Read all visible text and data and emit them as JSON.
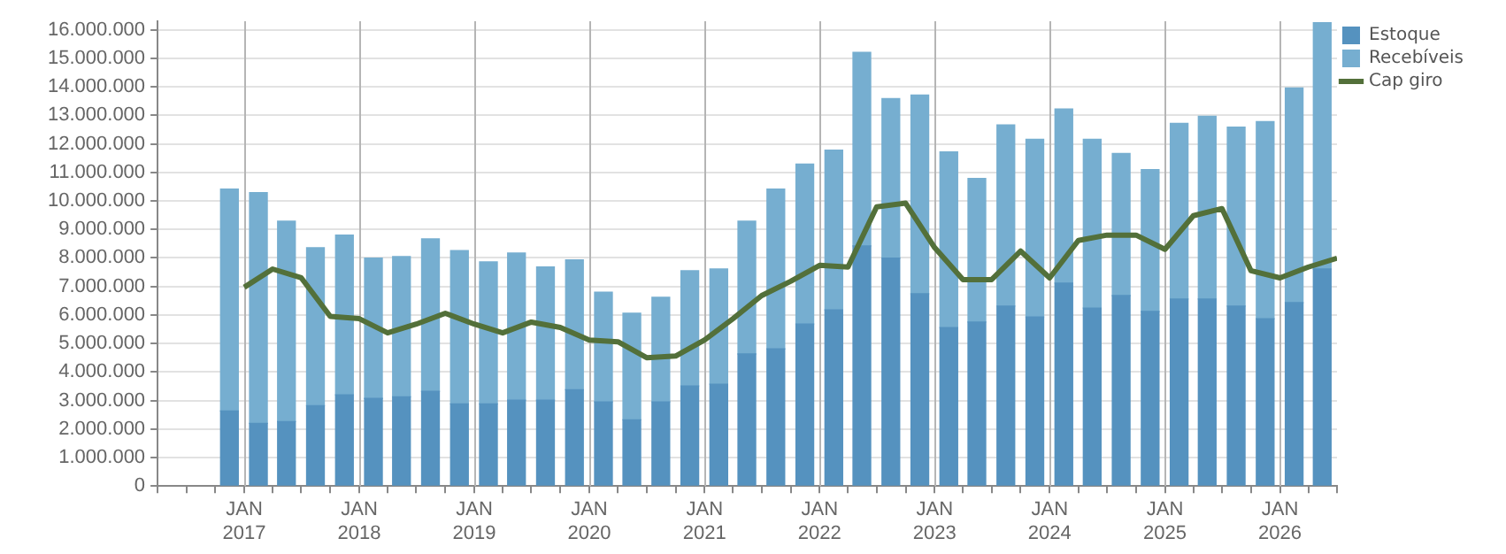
{
  "chart_data": {
    "type": "bar",
    "stacked": true,
    "grid": true,
    "legend": "top right",
    "xlim": [
      "2016-04-01",
      "2026-07-01"
    ],
    "xticks": [
      {
        "value": "2016-04-01",
        "label": null
      },
      {
        "value": "2016-07-01",
        "label": null
      },
      {
        "value": "2016-10-01",
        "label": null
      },
      {
        "value": "2017-01-01",
        "label": "JAN 2017"
      },
      {
        "value": "2017-04-01",
        "label": null
      },
      {
        "value": "2017-07-01",
        "label": null
      },
      {
        "value": "2017-10-01",
        "label": null
      },
      {
        "value": "2018-01-01",
        "label": "JAN 2018"
      },
      {
        "value": "2018-04-01",
        "label": null
      },
      {
        "value": "2018-07-01",
        "label": null
      },
      {
        "value": "2018-10-01",
        "label": null
      },
      {
        "value": "2019-01-01",
        "label": "JAN 2019"
      },
      {
        "value": "2019-04-01",
        "label": null
      },
      {
        "value": "2019-07-01",
        "label": null
      },
      {
        "value": "2019-10-01",
        "label": null
      },
      {
        "value": "2020-01-01",
        "label": "JAN 2020"
      },
      {
        "value": "2020-04-01",
        "label": null
      },
      {
        "value": "2020-07-01",
        "label": null
      },
      {
        "value": "2020-10-01",
        "label": null
      },
      {
        "value": "2021-01-01",
        "label": "JAN 2021"
      },
      {
        "value": "2021-04-01",
        "label": null
      },
      {
        "value": "2021-07-01",
        "label": null
      },
      {
        "value": "2021-10-01",
        "label": null
      },
      {
        "value": "2022-01-01",
        "label": "JAN 2022"
      },
      {
        "value": "2022-04-01",
        "label": null
      },
      {
        "value": "2022-07-01",
        "label": null
      },
      {
        "value": "2022-10-01",
        "label": null
      },
      {
        "value": "2023-01-01",
        "label": "JAN 2023"
      },
      {
        "value": "2023-04-01",
        "label": null
      },
      {
        "value": "2023-07-01",
        "label": null
      },
      {
        "value": "2023-10-01",
        "label": null
      },
      {
        "value": "2024-01-01",
        "label": "JAN 2024"
      },
      {
        "value": "2024-04-01",
        "label": null
      },
      {
        "value": "2024-07-01",
        "label": null
      },
      {
        "value": "2024-10-01",
        "label": null
      },
      {
        "value": "2025-01-01",
        "label": "JAN 2025"
      },
      {
        "value": "2025-04-01",
        "label": null
      },
      {
        "value": "2025-07-01",
        "label": null
      },
      {
        "value": "2025-10-01",
        "label": null
      },
      {
        "value": "2026-01-01",
        "label": "JAN 2026"
      },
      {
        "value": "2026-04-01",
        "label": null
      },
      {
        "value": "2026-07-01",
        "label": null
      }
    ],
    "ylim": [
      0,
      16300000
    ],
    "yticks": [
      {
        "value": 0,
        "label": "0"
      },
      {
        "value": 1000000,
        "label": "1.000.000"
      },
      {
        "value": 2000000,
        "label": "2.000.000"
      },
      {
        "value": 3000000,
        "label": "3.000.000"
      },
      {
        "value": 4000000,
        "label": "4.000.000"
      },
      {
        "value": 5000000,
        "label": "5.000.000"
      },
      {
        "value": 6000000,
        "label": "6.000.000"
      },
      {
        "value": 7000000,
        "label": "7.000.000"
      },
      {
        "value": 8000000,
        "label": "8.000.000"
      },
      {
        "value": 9000000,
        "label": "9.000.000"
      },
      {
        "value": 10000000,
        "label": "10.000.000"
      },
      {
        "value": 11000000,
        "label": "11.000.000"
      },
      {
        "value": 12000000,
        "label": "12.000.000"
      },
      {
        "value": 13000000,
        "label": "13.000.000"
      },
      {
        "value": 14000000,
        "label": "14.000.000"
      },
      {
        "value": 15000000,
        "label": "15.000.000"
      },
      {
        "value": 16000000,
        "label": "16.000.000"
      }
    ],
    "x": [
      "2016-11-15",
      "2017-02-15",
      "2017-05-15",
      "2017-08-15",
      "2017-11-15",
      "2018-02-15",
      "2018-05-15",
      "2018-08-15",
      "2018-11-15",
      "2019-02-15",
      "2019-05-15",
      "2019-08-15",
      "2019-11-15",
      "2020-02-15",
      "2020-05-15",
      "2020-08-15",
      "2020-11-15",
      "2021-02-15",
      "2021-05-15",
      "2021-08-15",
      "2021-11-15",
      "2022-02-15",
      "2022-05-15",
      "2022-08-15",
      "2022-11-15",
      "2023-02-15",
      "2023-05-15",
      "2023-08-15",
      "2023-11-15",
      "2024-02-15",
      "2024-05-15",
      "2024-08-15",
      "2024-11-15",
      "2025-02-15",
      "2025-05-15",
      "2025-08-15",
      "2025-11-15",
      "2026-02-15",
      "2026-05-15"
    ],
    "series": [
      {
        "name": "Estoque",
        "color": "#5592bf",
        "values": [
          2630000,
          2200000,
          2260000,
          2820000,
          3200000,
          3070000,
          3130000,
          3320000,
          2880000,
          2880000,
          3010000,
          3010000,
          3380000,
          2950000,
          2320000,
          2950000,
          3510000,
          3570000,
          4630000,
          4810000,
          5680000,
          6180000,
          8420000,
          7990000,
          6740000,
          5560000,
          5750000,
          6310000,
          5930000,
          7120000,
          6240000,
          6680000,
          6120000,
          6560000,
          6560000,
          6310000,
          5870000,
          6430000,
          7610000
        ]
      },
      {
        "name": "Recebíveis",
        "color": "#76aed0",
        "values": [
          7780000,
          8090000,
          7030000,
          5540000,
          5600000,
          4920000,
          4920000,
          5350000,
          5380000,
          4980000,
          5160000,
          4670000,
          4550000,
          3850000,
          3740000,
          3670000,
          4040000,
          4040000,
          4660000,
          5600000,
          5610000,
          5600000,
          6790000,
          5600000,
          6970000,
          6160000,
          5040000,
          6350000,
          6230000,
          6100000,
          5920000,
          4980000,
          4980000,
          6160000,
          6410000,
          6280000,
          6910000,
          7530000,
          8640000
        ]
      },
      {
        "name": "Cap giro",
        "type": "line",
        "color": "#53703a",
        "x": [
          "2017-01-01",
          "2017-04-01",
          "2017-07-01",
          "2017-10-01",
          "2018-01-01",
          "2018-04-01",
          "2018-07-01",
          "2018-10-01",
          "2019-01-01",
          "2019-04-01",
          "2019-07-01",
          "2019-10-01",
          "2020-01-01",
          "2020-04-01",
          "2020-07-01",
          "2020-10-01",
          "2021-01-01",
          "2021-04-01",
          "2021-07-01",
          "2021-10-01",
          "2022-01-01",
          "2022-04-01",
          "2022-07-01",
          "2022-10-01",
          "2023-01-01",
          "2023-04-01",
          "2023-07-01",
          "2023-10-01",
          "2024-01-01",
          "2024-04-01",
          "2024-07-01",
          "2024-10-01",
          "2025-01-01",
          "2025-04-01",
          "2025-07-01",
          "2025-10-01",
          "2026-01-01",
          "2026-04-01",
          "2026-07-01"
        ],
        "values": [
          6970000,
          7610000,
          7300000,
          5950000,
          5870000,
          5370000,
          5680000,
          6060000,
          5680000,
          5370000,
          5750000,
          5560000,
          5120000,
          5060000,
          4500000,
          4560000,
          5120000,
          5870000,
          6680000,
          7180000,
          7740000,
          7680000,
          9790000,
          9920000,
          8360000,
          7240000,
          7240000,
          8240000,
          7300000,
          8610000,
          8800000,
          8800000,
          8300000,
          9480000,
          9730000,
          7550000,
          7300000,
          7680000,
          7990000
        ]
      }
    ]
  }
}
